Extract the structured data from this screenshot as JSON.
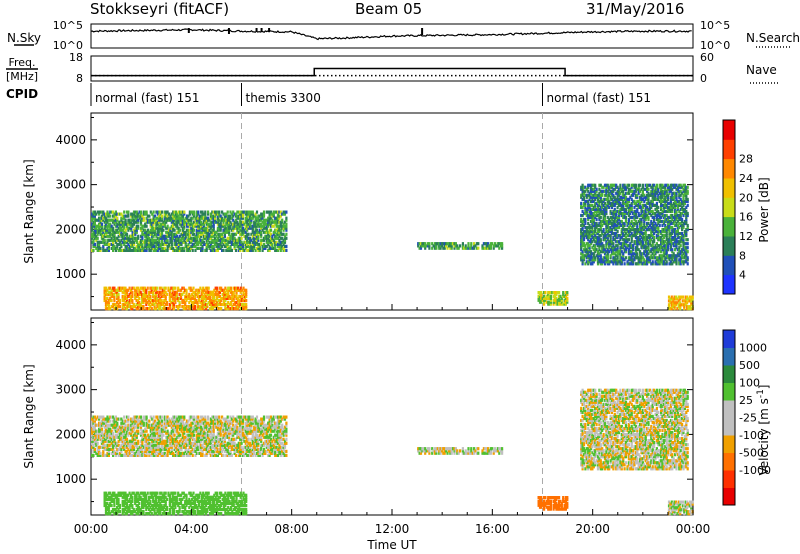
{
  "header": {
    "station": "Stokkseyri (fitACF)",
    "beam": "Beam 05",
    "date": "31/May/2016"
  },
  "labels": {
    "nsky": "N.Sky",
    "freq": "Freq.",
    "mhz": "[MHz]",
    "cpid": "CPID",
    "nsearch": "N.Search",
    "nave": "Nave",
    "slant_range": "Slant Range [km]",
    "power": "Power [dB]",
    "velocity": "Velocity [m s",
    "velocity_exp": "-1",
    "velocity_close": "]",
    "time_ut": "Time UT"
  },
  "chart_data": [
    {
      "type": "line",
      "panel": "noise",
      "ylabel_left": "N.Sky",
      "ylabel_right": "N.Search",
      "yticks": [
        "10^5",
        "10^0"
      ],
      "xlim": [
        0,
        24
      ],
      "series": [
        {
          "name": "N.Sky",
          "x": [
            0,
            2,
            4,
            6,
            8,
            9,
            10,
            12,
            14,
            16,
            18,
            20,
            22,
            24
          ],
          "y": [
            2.0,
            2.1,
            2.2,
            2.0,
            1.9,
            0.9,
            1.0,
            1.3,
            1.4,
            1.5,
            1.7,
            1.9,
            2.0,
            2.0
          ]
        }
      ]
    },
    {
      "type": "line",
      "panel": "frequency",
      "ylabel_left": "Freq. [MHz]",
      "ylabel_right": "Nave",
      "yticks_left": [
        "18",
        "8"
      ],
      "yticks_right": [
        "60",
        "0"
      ],
      "series": [
        {
          "name": "Freq",
          "x": [
            0,
            8.9,
            8.9,
            18.9,
            18.9,
            24
          ],
          "y": [
            8.6,
            8.6,
            12,
            12,
            8.6,
            8.6
          ]
        },
        {
          "name": "Nave",
          "x": [
            0,
            24
          ],
          "y": [
            13,
            13
          ]
        }
      ]
    },
    {
      "type": "table",
      "panel": "cpid",
      "segments": [
        {
          "start": 0,
          "label": "normal (fast) 151"
        },
        {
          "start": 6,
          "label": "themis 3300"
        },
        {
          "start": 18,
          "label": "normal (fast) 151"
        }
      ]
    },
    {
      "type": "heatmap",
      "panel": "power",
      "ylabel": "Slant Range [km]",
      "ylim": [
        200,
        4600
      ],
      "yticks": [
        1000,
        2000,
        3000,
        4000
      ],
      "colorbar": {
        "label": "Power [dB]",
        "ticks": [
          "4",
          "8",
          "12",
          "16",
          "20",
          "24",
          "28"
        ],
        "colors": [
          "#1e34ff",
          "#2050b8",
          "#2b7f58",
          "#4ab23a",
          "#c8dc18",
          "#f0c000",
          "#ff8800",
          "#ff4000",
          "#e80000"
        ]
      },
      "echo_regions": [
        {
          "t0": 0.0,
          "t1": 7.8,
          "r0": 1500,
          "r1": 2400,
          "level": 10
        },
        {
          "t0": 0.5,
          "t1": 6.2,
          "r0": 200,
          "r1": 700,
          "level": 22
        },
        {
          "t0": 13.0,
          "t1": 16.4,
          "r0": 1550,
          "r1": 1700,
          "level": 10
        },
        {
          "t0": 17.8,
          "t1": 19.0,
          "r0": 300,
          "r1": 600,
          "level": 16
        },
        {
          "t0": 19.5,
          "t1": 23.8,
          "r0": 1200,
          "r1": 3000,
          "level": 8
        },
        {
          "t0": 23.0,
          "t1": 24.0,
          "r0": 200,
          "r1": 500,
          "level": 20
        }
      ]
    },
    {
      "type": "heatmap",
      "panel": "velocity",
      "ylabel": "Slant Range [km]",
      "ylim": [
        200,
        4600
      ],
      "yticks": [
        1000,
        2000,
        3000,
        4000
      ],
      "colorbar": {
        "label": "Velocity [m s-1]",
        "ticks": [
          "1000",
          "500",
          "100",
          "25",
          "-25",
          "-100",
          "-500",
          "-1000"
        ],
        "colors": [
          "#1f3cd8",
          "#2a6fb0",
          "#2b8a3c",
          "#50c030",
          "#c0c0c0",
          "#c0c0c0",
          "#f0a000",
          "#ff7000",
          "#ff3000",
          "#e80000"
        ]
      },
      "echo_regions": [
        {
          "t0": 0.0,
          "t1": 7.8,
          "r0": 1500,
          "r1": 2400,
          "value": 0
        },
        {
          "t0": 0.5,
          "t1": 6.2,
          "r0": 200,
          "r1": 700,
          "value": 150
        },
        {
          "t0": 13.0,
          "t1": 16.4,
          "r0": 1550,
          "r1": 1700,
          "value": 0
        },
        {
          "t0": 17.8,
          "t1": 19.0,
          "r0": 300,
          "r1": 600,
          "value": -400
        },
        {
          "t0": 19.5,
          "t1": 23.8,
          "r0": 1200,
          "r1": 3000,
          "value": 0
        },
        {
          "t0": 23.0,
          "t1": 24.0,
          "r0": 200,
          "r1": 500,
          "value": 0
        }
      ]
    }
  ],
  "xaxis": {
    "ticks": [
      "00:00",
      "04:00",
      "08:00",
      "12:00",
      "16:00",
      "20:00",
      "00:00"
    ],
    "label": "Time UT",
    "range_hours": [
      0,
      24
    ]
  }
}
